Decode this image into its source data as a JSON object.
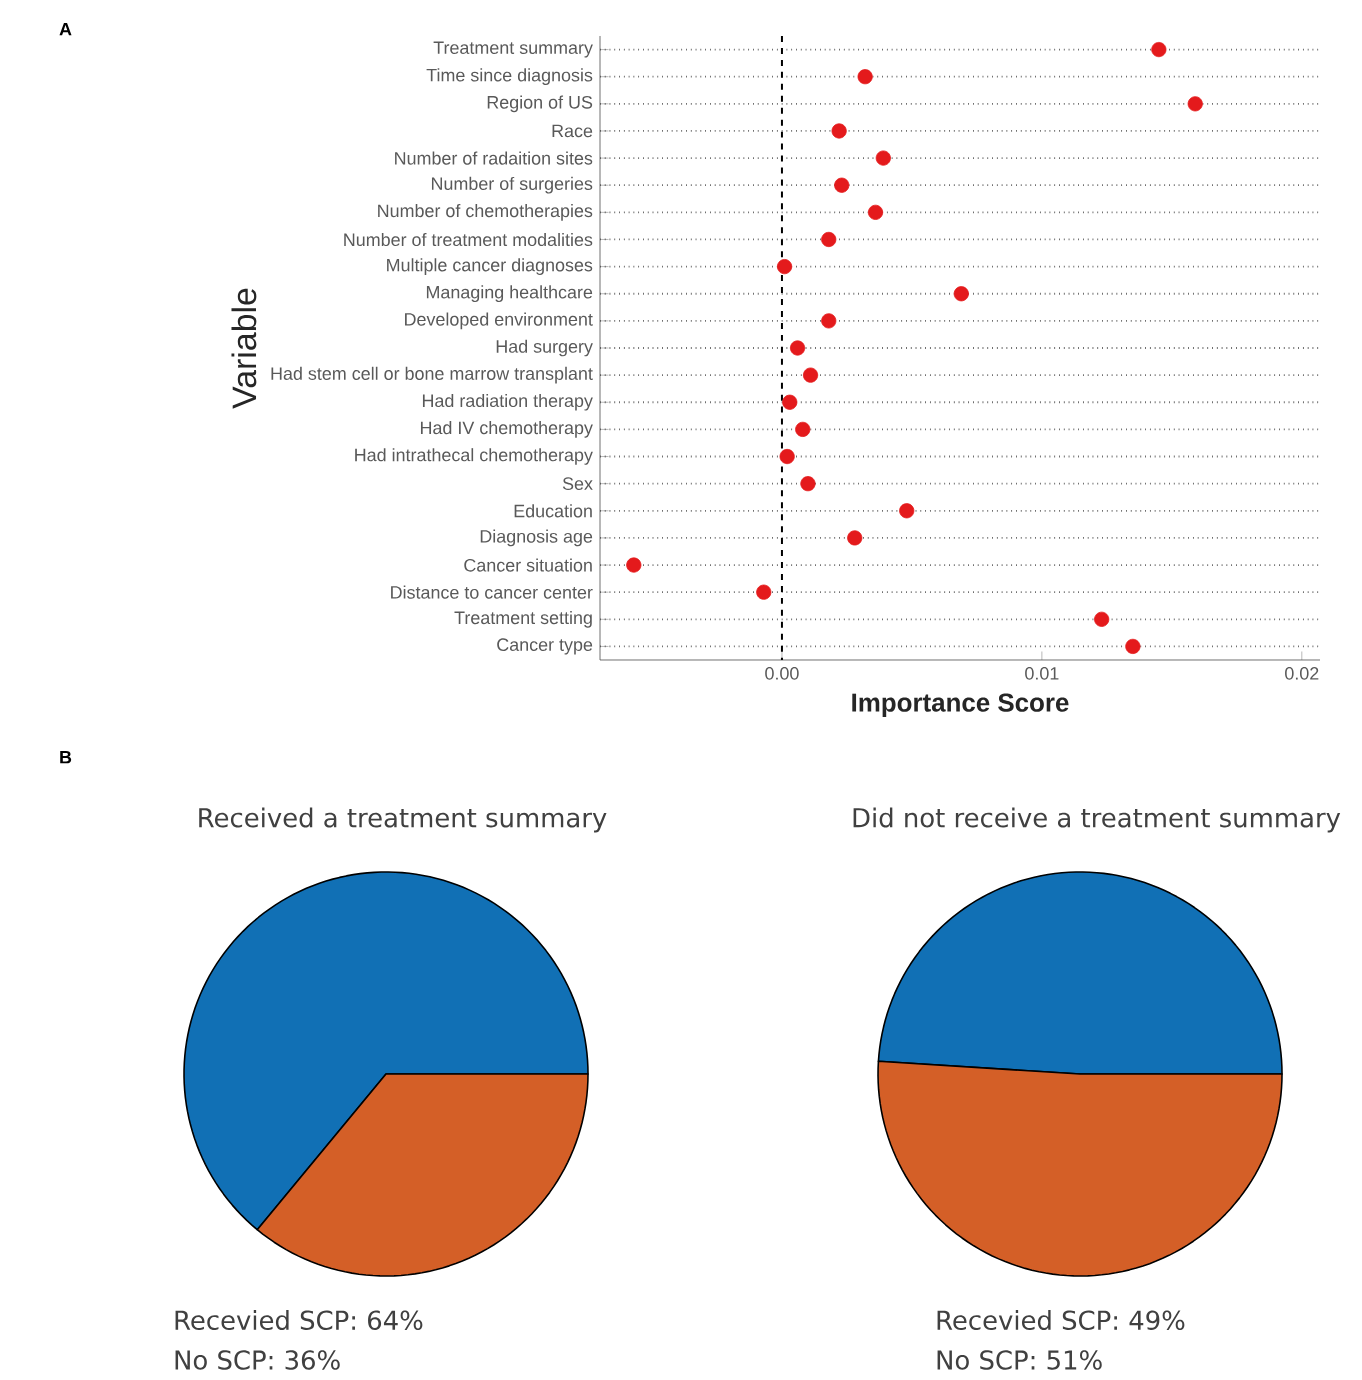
{
  "chart_data": [
    {
      "type": "scatter",
      "orientation": "horizontal",
      "ylabel": "Variable",
      "xlabel": "Importance Score",
      "annotations": [
        "A",
        "B"
      ],
      "categories": [
        "Treatment summary",
        "Time since diagnosis",
        "Region of US",
        "Race",
        "Number of radaition sites",
        "Number of surgeries",
        "Number of chemotherapies",
        "Number of treatment modalities",
        "Multiple cancer diagnoses",
        "Managing healthcare",
        "Developed environment",
        "Had surgery",
        "Had stem cell or bone marrow transplant",
        "Had radiation therapy",
        "Had IV chemotherapy",
        "Had intrathecal chemotherapy",
        "Sex",
        "Education",
        "Diagnosis age",
        "Cancer situation",
        "Distance to cancer center",
        "Treatment setting",
        "Cancer type"
      ],
      "values": [
        0.0145,
        0.0032,
        0.0159,
        0.0022,
        0.0039,
        0.0023,
        0.0036,
        0.0018,
        0.0001,
        0.0069,
        0.0018,
        0.0006,
        0.0011,
        0.0003,
        0.0008,
        0.0002,
        0.001,
        0.0048,
        0.0028,
        -0.0057,
        -0.0007,
        0.0123,
        0.0135
      ],
      "color": "#e41a1c",
      "marker": "circle",
      "grid": "y",
      "xlim": [
        -0.007,
        0.0207
      ],
      "xticks": [
        {
          "value": 0,
          "label": "0.00"
        },
        0.01,
        0.02
      ],
      "ref_lines": [
        {
          "axis": "x",
          "value": 0,
          "line_style": "dashed"
        }
      ]
    },
    {
      "type": "pie",
      "title": "Received a treatment summary",
      "annotations": [
        "Recevied SCP: 64%",
        "No SCP: 36%"
      ],
      "categories": [
        null,
        null
      ],
      "values": [
        64,
        36
      ],
      "colors": [
        "#1170b5",
        "#d45f27"
      ]
    },
    {
      "type": "pie",
      "title": "Did not receive a treatment summary",
      "annotations": [
        "Recevied SCP: 49%",
        "No SCP: 51%"
      ],
      "categories": [
        null,
        null
      ],
      "values": [
        49,
        51
      ],
      "colors": [
        "#1170b5",
        "#d45f27"
      ]
    }
  ]
}
